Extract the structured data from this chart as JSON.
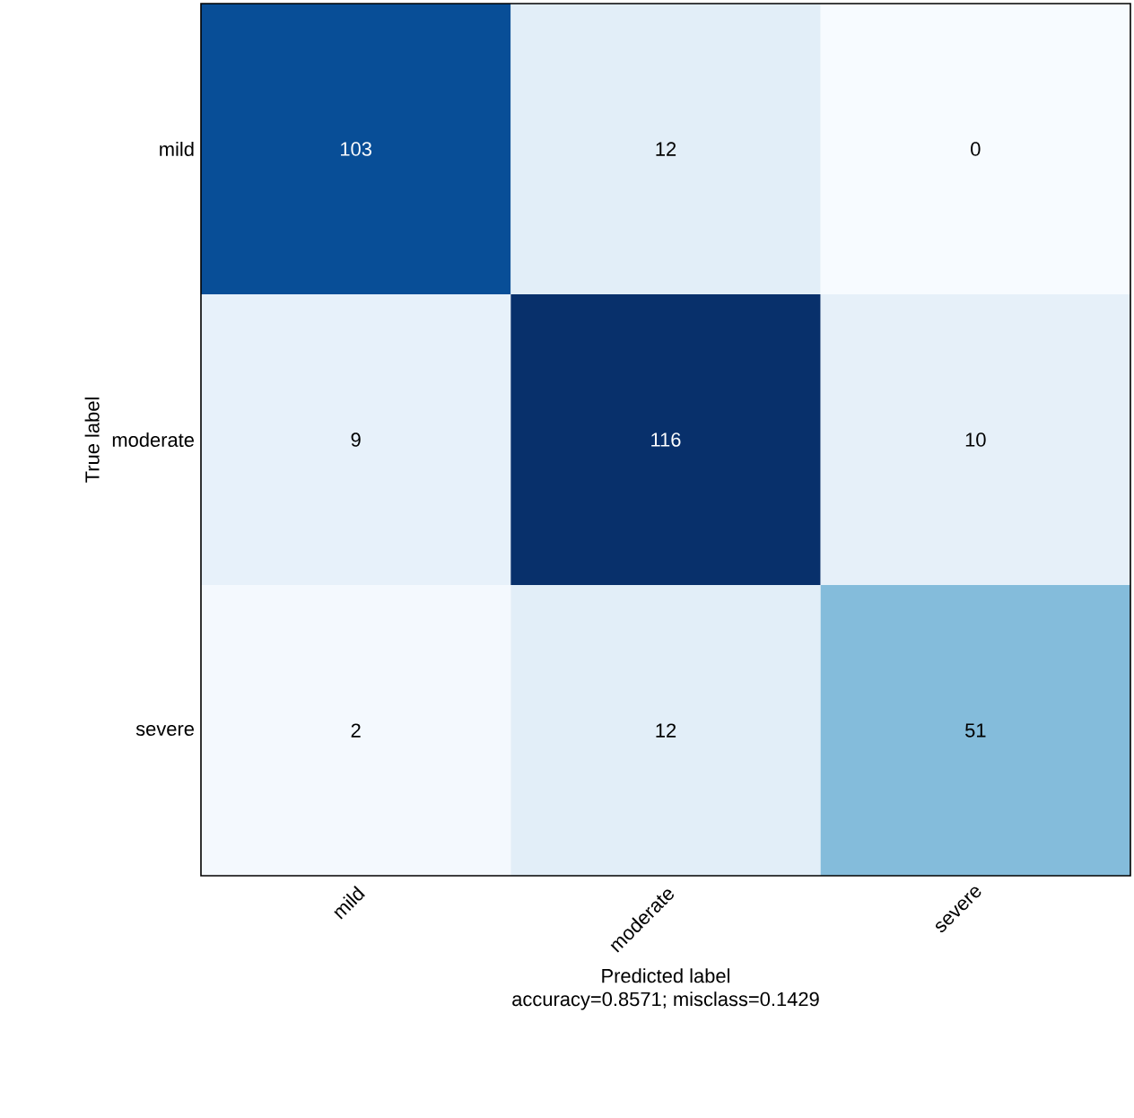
{
  "chart_data": {
    "type": "heatmap",
    "xlabel": "Predicted label",
    "ylabel": "True label",
    "annotations": [
      "accuracy=0.8571; misclass=0.1429"
    ],
    "categories": [
      "mild",
      "moderate",
      "severe"
    ],
    "y_categories": [
      "mild",
      "moderate",
      "severe"
    ],
    "cells": [
      [
        103,
        12,
        0
      ],
      [
        9,
        116,
        10
      ],
      [
        2,
        12,
        51
      ]
    ],
    "data_labels": true,
    "grid": false
  }
}
